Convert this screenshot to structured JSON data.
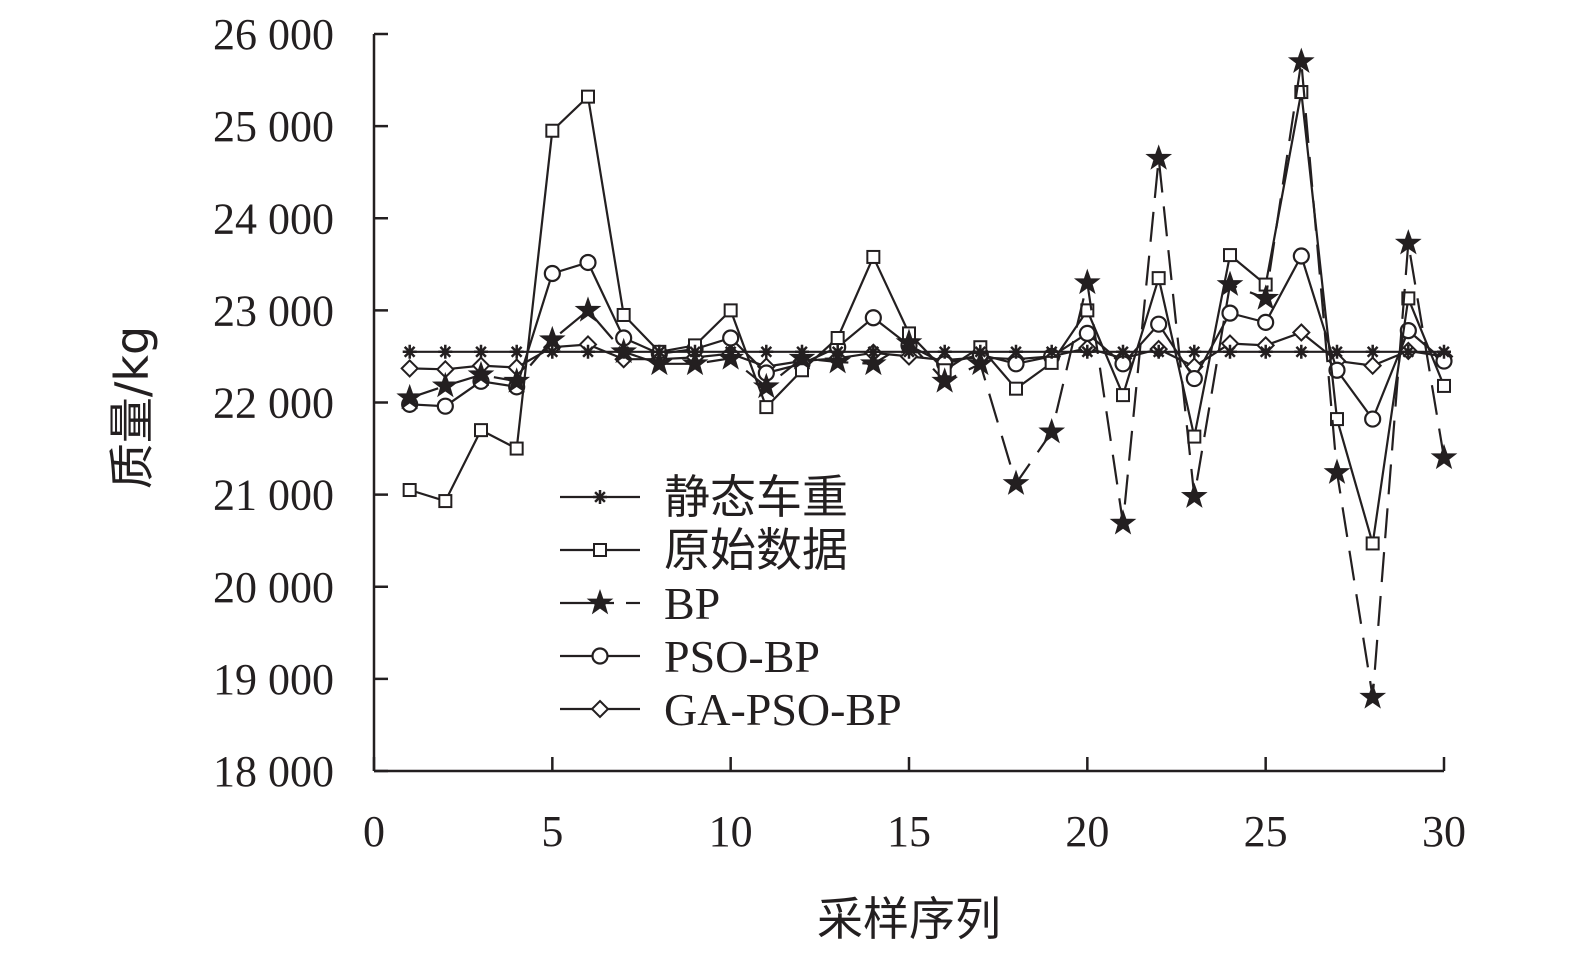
{
  "chart_data": {
    "type": "line",
    "title": "",
    "xlabel": "采样序列",
    "ylabel": "质量/kg",
    "xlim": [
      0,
      30
    ],
    "ylim": [
      18000,
      26000
    ],
    "xticks": [
      0,
      5,
      10,
      15,
      20,
      25,
      30
    ],
    "xtick_labels": [
      "0",
      "5",
      "10",
      "15",
      "20",
      "25",
      "30"
    ],
    "yticks": [
      18000,
      19000,
      20000,
      21000,
      22000,
      23000,
      24000,
      25000,
      26000
    ],
    "ytick_labels": [
      "18 000",
      "19 000",
      "20 000",
      "21 000",
      "22 000",
      "23 000",
      "24 000",
      "25 000",
      "26 000"
    ],
    "grid": false,
    "legend_position": "center-left",
    "x": [
      1,
      2,
      3,
      4,
      5,
      6,
      7,
      8,
      9,
      10,
      11,
      12,
      13,
      14,
      15,
      16,
      17,
      18,
      19,
      20,
      21,
      22,
      23,
      24,
      25,
      26,
      27,
      28,
      29,
      30
    ],
    "series": [
      {
        "name": "静态车重",
        "marker": "asterisk",
        "dash": "solid",
        "values": [
          22550,
          22550,
          22550,
          22550,
          22550,
          22550,
          22550,
          22550,
          22550,
          22550,
          22550,
          22550,
          22550,
          22550,
          22550,
          22550,
          22550,
          22550,
          22550,
          22550,
          22550,
          22550,
          22550,
          22550,
          22550,
          22550,
          22550,
          22550,
          22550,
          22550
        ]
      },
      {
        "name": "原始数据",
        "marker": "square",
        "dash": "solid",
        "values": [
          21050,
          20930,
          21700,
          21500,
          24950,
          25320,
          22950,
          22550,
          22620,
          23000,
          21950,
          22350,
          22700,
          23580,
          22750,
          22350,
          22600,
          22150,
          22430,
          23000,
          22080,
          23350,
          21630,
          23600,
          23280,
          25370,
          21820,
          20470,
          23130,
          22180
        ]
      },
      {
        "name": "BP",
        "marker": "star",
        "dash": "dashed",
        "values": [
          22050,
          22180,
          22300,
          22230,
          22680,
          23000,
          22550,
          22420,
          22420,
          22480,
          22170,
          22480,
          22440,
          22420,
          22650,
          22230,
          22420,
          21120,
          21680,
          23300,
          20690,
          24650,
          20980,
          23280,
          23130,
          25700,
          21240,
          18800,
          23730,
          21400
        ]
      },
      {
        "name": "PSO-BP",
        "marker": "circle",
        "dash": "solid",
        "values": [
          21980,
          21960,
          22230,
          22170,
          23400,
          23520,
          22700,
          22530,
          22580,
          22700,
          22320,
          22420,
          22600,
          22920,
          22620,
          22420,
          22520,
          22420,
          22500,
          22750,
          22420,
          22850,
          22260,
          22970,
          22870,
          23590,
          22350,
          21820,
          22780,
          22450
        ]
      },
      {
        "name": "GA-PSO-BP",
        "marker": "diamond",
        "dash": "solid",
        "values": [
          22370,
          22360,
          22400,
          22380,
          22600,
          22630,
          22470,
          22470,
          22490,
          22530,
          22390,
          22450,
          22480,
          22540,
          22500,
          22460,
          22490,
          22470,
          22500,
          22590,
          22480,
          22580,
          22390,
          22640,
          22620,
          22760,
          22450,
          22400,
          22560,
          22500
        ]
      }
    ]
  }
}
